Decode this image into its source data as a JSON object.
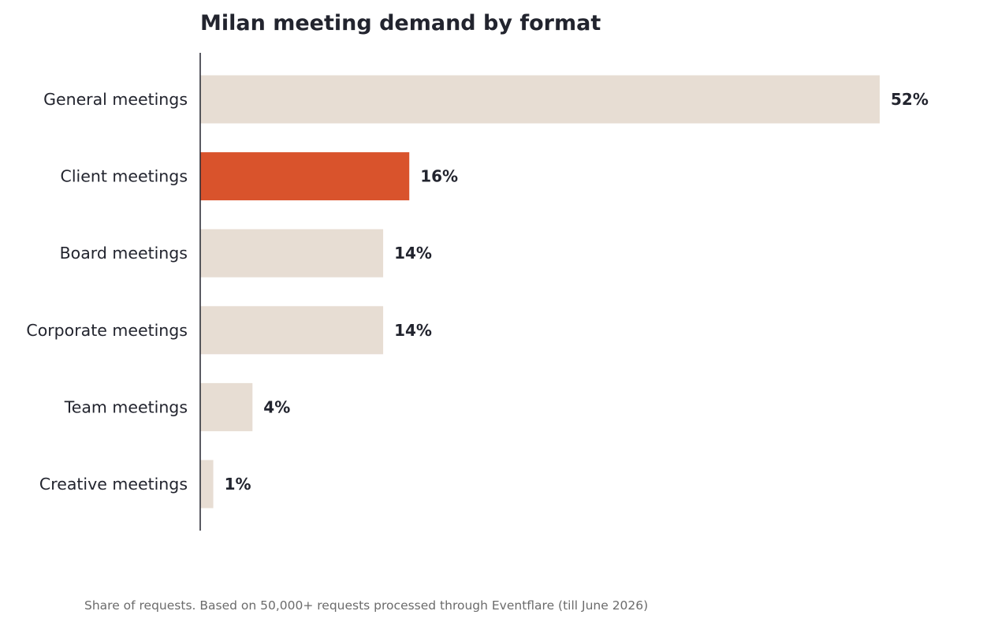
{
  "chart_data": {
    "type": "bar",
    "orientation": "horizontal",
    "title": "Milan meeting demand by format",
    "categories": [
      "General meetings",
      "Client meetings",
      "Board meetings",
      "Corporate meetings",
      "Team meetings",
      "Creative meetings"
    ],
    "values": [
      52,
      16,
      14,
      14,
      4,
      1
    ],
    "value_labels": [
      "52%",
      "16%",
      "14%",
      "14%",
      "4%",
      "1%"
    ],
    "highlight_index": 1,
    "xlim": [
      0,
      60
    ],
    "grid": false,
    "legend": "none",
    "colors": {
      "bar": "#e7ddd3",
      "highlight": "#d9532c",
      "axis": "#22242e",
      "text": "#22242e"
    }
  },
  "footnote": "Share of requests. Based on 50,000+ requests processed through Eventflare (till June 2026)"
}
